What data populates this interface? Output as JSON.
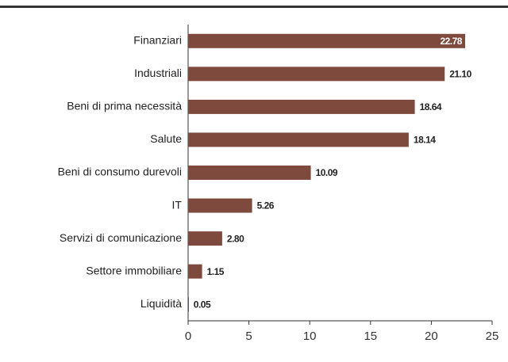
{
  "chart_data": {
    "type": "bar",
    "orientation": "horizontal",
    "categories": [
      "Finanziari",
      "Industriali",
      "Beni di prima necessità",
      "Salute",
      "Beni di consumo durevoli",
      "IT",
      "Servizi di comunicazione",
      "Settore immobiliare",
      "Liquidità"
    ],
    "values": [
      22.78,
      21.1,
      18.64,
      18.14,
      10.09,
      5.26,
      2.8,
      1.15,
      0.05
    ],
    "value_labels": [
      "22.78",
      "21.10",
      "18.64",
      "18.14",
      "10.09",
      "5.26",
      "2.80",
      "1.15",
      "0.05"
    ],
    "color": "#7e4a3e",
    "xlim": [
      0,
      25
    ],
    "xticks": [
      0,
      5,
      10,
      15,
      20,
      25
    ],
    "grid": false
  }
}
